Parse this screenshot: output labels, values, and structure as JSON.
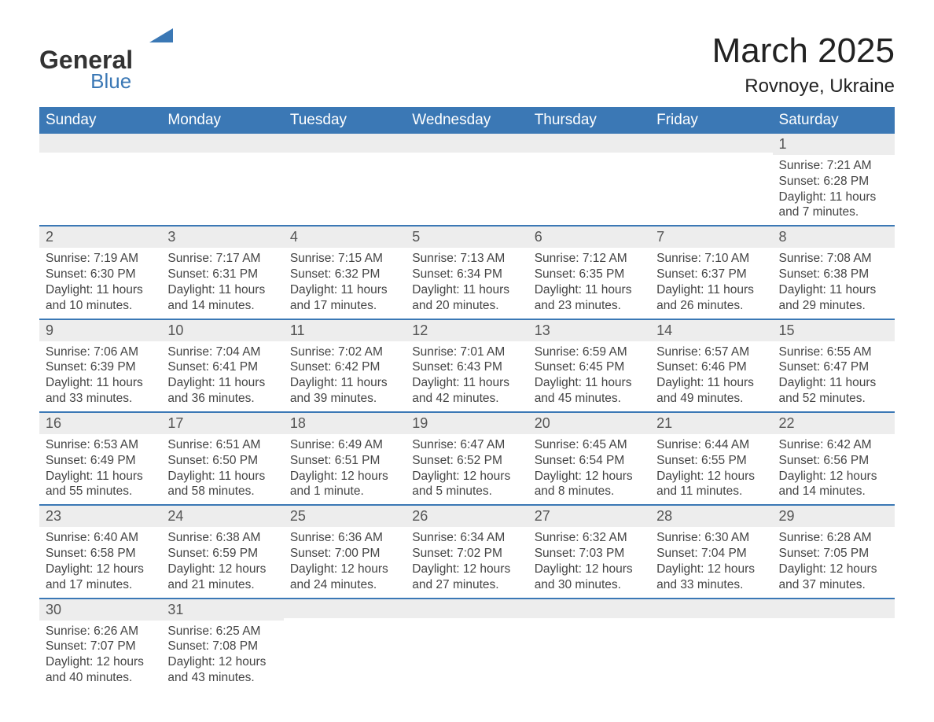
{
  "brand": {
    "name1": "General",
    "name2": "Blue",
    "shape_color": "#3b78b5"
  },
  "title": "March 2025",
  "location": "Rovnoye, Ukraine",
  "colors": {
    "header_bg": "#3b78b5",
    "header_text": "#ffffff",
    "daynum_bg": "#ededed",
    "row_border": "#3b78b5",
    "body_text": "#444444"
  },
  "typography": {
    "title_fontsize": 44,
    "location_fontsize": 24,
    "weekday_fontsize": 19,
    "daynum_fontsize": 18,
    "body_fontsize": 15.5
  },
  "weekdays": [
    "Sunday",
    "Monday",
    "Tuesday",
    "Wednesday",
    "Thursday",
    "Friday",
    "Saturday"
  ],
  "weeks": [
    [
      {
        "empty": true
      },
      {
        "empty": true
      },
      {
        "empty": true
      },
      {
        "empty": true
      },
      {
        "empty": true
      },
      {
        "empty": true
      },
      {
        "num": "1",
        "sunrise": "Sunrise: 7:21 AM",
        "sunset": "Sunset: 6:28 PM",
        "daylight": "Daylight: 11 hours and 7 minutes."
      }
    ],
    [
      {
        "num": "2",
        "sunrise": "Sunrise: 7:19 AM",
        "sunset": "Sunset: 6:30 PM",
        "daylight": "Daylight: 11 hours and 10 minutes."
      },
      {
        "num": "3",
        "sunrise": "Sunrise: 7:17 AM",
        "sunset": "Sunset: 6:31 PM",
        "daylight": "Daylight: 11 hours and 14 minutes."
      },
      {
        "num": "4",
        "sunrise": "Sunrise: 7:15 AM",
        "sunset": "Sunset: 6:32 PM",
        "daylight": "Daylight: 11 hours and 17 minutes."
      },
      {
        "num": "5",
        "sunrise": "Sunrise: 7:13 AM",
        "sunset": "Sunset: 6:34 PM",
        "daylight": "Daylight: 11 hours and 20 minutes."
      },
      {
        "num": "6",
        "sunrise": "Sunrise: 7:12 AM",
        "sunset": "Sunset: 6:35 PM",
        "daylight": "Daylight: 11 hours and 23 minutes."
      },
      {
        "num": "7",
        "sunrise": "Sunrise: 7:10 AM",
        "sunset": "Sunset: 6:37 PM",
        "daylight": "Daylight: 11 hours and 26 minutes."
      },
      {
        "num": "8",
        "sunrise": "Sunrise: 7:08 AM",
        "sunset": "Sunset: 6:38 PM",
        "daylight": "Daylight: 11 hours and 29 minutes."
      }
    ],
    [
      {
        "num": "9",
        "sunrise": "Sunrise: 7:06 AM",
        "sunset": "Sunset: 6:39 PM",
        "daylight": "Daylight: 11 hours and 33 minutes."
      },
      {
        "num": "10",
        "sunrise": "Sunrise: 7:04 AM",
        "sunset": "Sunset: 6:41 PM",
        "daylight": "Daylight: 11 hours and 36 minutes."
      },
      {
        "num": "11",
        "sunrise": "Sunrise: 7:02 AM",
        "sunset": "Sunset: 6:42 PM",
        "daylight": "Daylight: 11 hours and 39 minutes."
      },
      {
        "num": "12",
        "sunrise": "Sunrise: 7:01 AM",
        "sunset": "Sunset: 6:43 PM",
        "daylight": "Daylight: 11 hours and 42 minutes."
      },
      {
        "num": "13",
        "sunrise": "Sunrise: 6:59 AM",
        "sunset": "Sunset: 6:45 PM",
        "daylight": "Daylight: 11 hours and 45 minutes."
      },
      {
        "num": "14",
        "sunrise": "Sunrise: 6:57 AM",
        "sunset": "Sunset: 6:46 PM",
        "daylight": "Daylight: 11 hours and 49 minutes."
      },
      {
        "num": "15",
        "sunrise": "Sunrise: 6:55 AM",
        "sunset": "Sunset: 6:47 PM",
        "daylight": "Daylight: 11 hours and 52 minutes."
      }
    ],
    [
      {
        "num": "16",
        "sunrise": "Sunrise: 6:53 AM",
        "sunset": "Sunset: 6:49 PM",
        "daylight": "Daylight: 11 hours and 55 minutes."
      },
      {
        "num": "17",
        "sunrise": "Sunrise: 6:51 AM",
        "sunset": "Sunset: 6:50 PM",
        "daylight": "Daylight: 11 hours and 58 minutes."
      },
      {
        "num": "18",
        "sunrise": "Sunrise: 6:49 AM",
        "sunset": "Sunset: 6:51 PM",
        "daylight": "Daylight: 12 hours and 1 minute."
      },
      {
        "num": "19",
        "sunrise": "Sunrise: 6:47 AM",
        "sunset": "Sunset: 6:52 PM",
        "daylight": "Daylight: 12 hours and 5 minutes."
      },
      {
        "num": "20",
        "sunrise": "Sunrise: 6:45 AM",
        "sunset": "Sunset: 6:54 PM",
        "daylight": "Daylight: 12 hours and 8 minutes."
      },
      {
        "num": "21",
        "sunrise": "Sunrise: 6:44 AM",
        "sunset": "Sunset: 6:55 PM",
        "daylight": "Daylight: 12 hours and 11 minutes."
      },
      {
        "num": "22",
        "sunrise": "Sunrise: 6:42 AM",
        "sunset": "Sunset: 6:56 PM",
        "daylight": "Daylight: 12 hours and 14 minutes."
      }
    ],
    [
      {
        "num": "23",
        "sunrise": "Sunrise: 6:40 AM",
        "sunset": "Sunset: 6:58 PM",
        "daylight": "Daylight: 12 hours and 17 minutes."
      },
      {
        "num": "24",
        "sunrise": "Sunrise: 6:38 AM",
        "sunset": "Sunset: 6:59 PM",
        "daylight": "Daylight: 12 hours and 21 minutes."
      },
      {
        "num": "25",
        "sunrise": "Sunrise: 6:36 AM",
        "sunset": "Sunset: 7:00 PM",
        "daylight": "Daylight: 12 hours and 24 minutes."
      },
      {
        "num": "26",
        "sunrise": "Sunrise: 6:34 AM",
        "sunset": "Sunset: 7:02 PM",
        "daylight": "Daylight: 12 hours and 27 minutes."
      },
      {
        "num": "27",
        "sunrise": "Sunrise: 6:32 AM",
        "sunset": "Sunset: 7:03 PM",
        "daylight": "Daylight: 12 hours and 30 minutes."
      },
      {
        "num": "28",
        "sunrise": "Sunrise: 6:30 AM",
        "sunset": "Sunset: 7:04 PM",
        "daylight": "Daylight: 12 hours and 33 minutes."
      },
      {
        "num": "29",
        "sunrise": "Sunrise: 6:28 AM",
        "sunset": "Sunset: 7:05 PM",
        "daylight": "Daylight: 12 hours and 37 minutes."
      }
    ],
    [
      {
        "num": "30",
        "sunrise": "Sunrise: 6:26 AM",
        "sunset": "Sunset: 7:07 PM",
        "daylight": "Daylight: 12 hours and 40 minutes."
      },
      {
        "num": "31",
        "sunrise": "Sunrise: 6:25 AM",
        "sunset": "Sunset: 7:08 PM",
        "daylight": "Daylight: 12 hours and 43 minutes."
      },
      {
        "empty": true
      },
      {
        "empty": true
      },
      {
        "empty": true
      },
      {
        "empty": true
      },
      {
        "empty": true
      }
    ]
  ]
}
